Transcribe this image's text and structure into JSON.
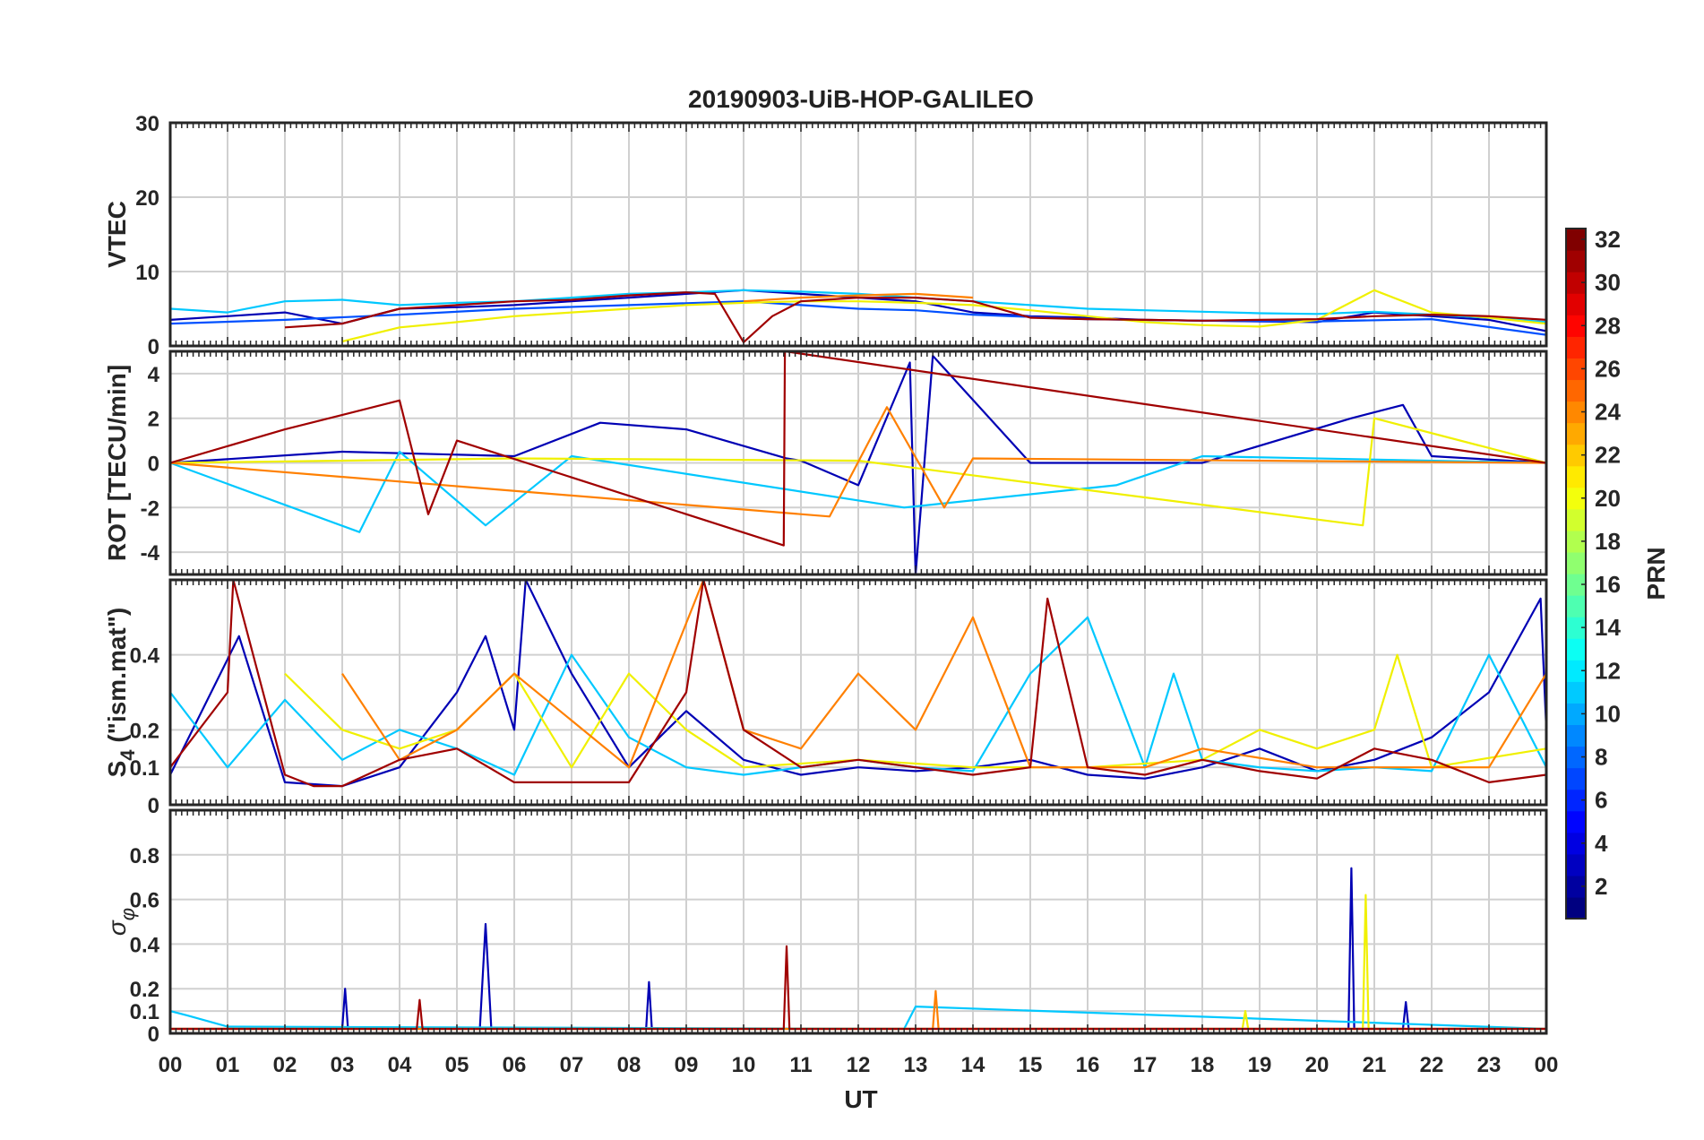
{
  "figure": {
    "title": "20190903-UiB-HOP-GALILEO"
  },
  "chart_data": {
    "type": "line",
    "title": "20190903-UiB-HOP-GALILEO",
    "xlabel": "UT",
    "x_range_hours": [
      0,
      24
    ],
    "x_tick_labels": [
      "00",
      "01",
      "02",
      "03",
      "04",
      "05",
      "06",
      "07",
      "08",
      "09",
      "10",
      "11",
      "12",
      "13",
      "14",
      "15",
      "16",
      "17",
      "18",
      "19",
      "20",
      "21",
      "22",
      "23",
      "00"
    ],
    "colorbar": {
      "label": "PRN",
      "range": [
        1,
        32
      ],
      "tick_labels": [
        "2",
        "4",
        "6",
        "8",
        "10",
        "12",
        "14",
        "16",
        "18",
        "20",
        "22",
        "24",
        "26",
        "28",
        "30",
        "32"
      ]
    },
    "panels": [
      {
        "id": "vtec",
        "ylabel": "VTEC",
        "ylim": [
          0,
          30
        ],
        "yticks": [
          "0",
          "10",
          "20",
          "30"
        ],
        "series": [
          {
            "name": "PRN 2",
            "prn": 2,
            "color": "#0000b4",
            "x": [
              0,
              1,
              2,
              3,
              4,
              5,
              6,
              7,
              8,
              9,
              10,
              11,
              12,
              13,
              14,
              15,
              16,
              17,
              18,
              19,
              20,
              21,
              22,
              23,
              24
            ],
            "values": [
              3.5,
              4,
              4.5,
              3,
              5,
              5.2,
              5.5,
              6,
              6.5,
              7,
              7.5,
              7,
              6.5,
              6,
              4.5,
              4,
              3.8,
              3.5,
              3.4,
              3.3,
              3.2,
              4.5,
              4,
              3.5,
              2
            ]
          },
          {
            "name": "PRN 5",
            "prn": 5,
            "color": "#0050ff",
            "x": [
              0,
              2,
              4,
              6,
              8,
              10,
              11,
              12,
              13,
              14,
              16,
              18,
              20,
              22,
              24
            ],
            "values": [
              3,
              3.5,
              4.2,
              5,
              5.5,
              6,
              5.5,
              5,
              4.8,
              4.2,
              3.6,
              3.4,
              3.3,
              3.6,
              1.5
            ]
          },
          {
            "name": "PRN 12",
            "prn": 12,
            "color": "#00c8ff",
            "x": [
              0,
              1,
              2,
              3,
              4,
              5,
              6,
              7,
              8,
              9,
              10,
              11,
              12,
              13,
              14,
              15,
              16,
              17,
              18,
              19,
              20,
              21,
              22,
              23,
              24
            ],
            "values": [
              5,
              4.5,
              6,
              6.2,
              5.5,
              5.8,
              6,
              6.5,
              7,
              7.2,
              7.5,
              7.3,
              7,
              6.5,
              6,
              5.5,
              5,
              4.8,
              4.6,
              4.4,
              4.3,
              4.6,
              4.2,
              3.8,
              3.2
            ]
          },
          {
            "name": "PRN 20",
            "prn": 20,
            "color": "#f0f000",
            "x": [
              3,
              4,
              5,
              6,
              7,
              8,
              9,
              10,
              11,
              12,
              13,
              14,
              15,
              16,
              17,
              18,
              19,
              20,
              21,
              22,
              23,
              24
            ],
            "values": [
              0.6,
              2.5,
              3.2,
              4,
              4.5,
              5,
              5.5,
              5.8,
              6,
              6,
              5.8,
              5.5,
              4.8,
              4,
              3.2,
              2.8,
              2.6,
              3.5,
              7.5,
              4.5,
              3.8,
              3
            ]
          },
          {
            "name": "PRN 25",
            "prn": 25,
            "color": "#ff8000",
            "x": [
              10,
              11,
              12,
              13,
              14
            ],
            "values": [
              6,
              6.5,
              6.8,
              7,
              6.5
            ]
          },
          {
            "name": "PRN 31",
            "prn": 31,
            "color": "#a00000",
            "x": [
              2,
              3,
              4,
              5,
              6,
              7,
              8,
              9,
              9.5,
              10,
              10.5,
              11,
              12,
              13,
              14,
              15,
              16,
              17,
              18,
              19,
              20,
              21,
              22,
              23,
              24
            ],
            "values": [
              2.5,
              3,
              5,
              5.5,
              6,
              6.2,
              6.8,
              7.2,
              7,
              0.5,
              4,
              6,
              6.5,
              6.5,
              6,
              3.8,
              3.6,
              3.5,
              3.4,
              3.5,
              3.6,
              4,
              4.2,
              4,
              3.5
            ]
          }
        ]
      },
      {
        "id": "rot",
        "ylabel": "ROT [TECU/min]",
        "ylim": [
          -5,
          5
        ],
        "yticks": [
          "-4",
          "-2",
          "0",
          "2",
          "4"
        ],
        "series": [
          {
            "name": "PRN 2",
            "prn": 2,
            "color": "#0000b4",
            "x": [
              0,
              3,
              6,
              7.5,
              9,
              10.75,
              11,
              12,
              12.9,
              13,
              13.3,
              15,
              18,
              20.6,
              21.5,
              22,
              24
            ],
            "values": [
              0,
              0.5,
              0.3,
              1.8,
              1.5,
              0.2,
              0.1,
              -1,
              4.5,
              -5,
              4.8,
              0,
              0,
              2,
              2.6,
              0.3,
              0
            ]
          },
          {
            "name": "PRN 12",
            "prn": 12,
            "color": "#00c8ff",
            "x": [
              0,
              3.3,
              4,
              5.5,
              7,
              12.8,
              16.5,
              18,
              24
            ],
            "values": [
              0,
              -3.1,
              0.5,
              -2.8,
              0.3,
              -2,
              -1,
              0.3,
              0
            ]
          },
          {
            "name": "PRN 20",
            "prn": 20,
            "color": "#f0f000",
            "x": [
              0,
              6,
              12,
              20.8,
              21,
              24
            ],
            "values": [
              0,
              0.2,
              0.1,
              -2.8,
              2,
              0
            ]
          },
          {
            "name": "PRN 25",
            "prn": 25,
            "color": "#ff8000",
            "x": [
              0,
              11.5,
              12.5,
              13.5,
              14,
              24
            ],
            "values": [
              0,
              -2.4,
              2.5,
              -2,
              0.2,
              0
            ]
          },
          {
            "name": "PRN 31",
            "prn": 31,
            "color": "#a00000",
            "x": [
              0,
              2,
              4,
              4.5,
              5,
              10.7,
              10.72,
              24
            ],
            "values": [
              0,
              1.5,
              2.8,
              -2.3,
              1,
              -3.7,
              5,
              0
            ]
          }
        ]
      },
      {
        "id": "s4",
        "ylabel": "S4 (\"ism.mat\")",
        "ylabel_main": "S",
        "ylabel_sub": "4",
        "ylabel_rest": " (\"ism.mat\")",
        "ylim": [
          0,
          0.6
        ],
        "yticks": [
          "0",
          "0.1",
          "0.2",
          "0.4"
        ],
        "series": [
          {
            "name": "PRN 2",
            "prn": 2,
            "color": "#0000b4",
            "x": [
              0,
              1.2,
              2,
              3,
              4,
              5,
              5.5,
              6,
              6.2,
              7,
              8,
              9,
              10,
              11,
              12,
              13,
              14,
              15,
              16,
              17,
              18,
              19,
              20,
              21,
              22,
              23,
              23.9,
              24
            ],
            "values": [
              0.08,
              0.45,
              0.06,
              0.05,
              0.1,
              0.3,
              0.45,
              0.2,
              0.6,
              0.35,
              0.1,
              0.25,
              0.12,
              0.08,
              0.1,
              0.09,
              0.1,
              0.12,
              0.08,
              0.07,
              0.1,
              0.15,
              0.09,
              0.12,
              0.18,
              0.3,
              0.55,
              0.2
            ]
          },
          {
            "name": "PRN 12",
            "prn": 12,
            "color": "#00c8ff",
            "x": [
              0,
              1,
              2,
              3,
              4,
              5,
              6,
              7,
              8,
              9,
              10,
              11,
              12,
              13,
              14,
              15,
              16,
              17,
              17.5,
              18,
              19,
              20,
              21,
              22,
              23,
              24
            ],
            "values": [
              0.3,
              0.1,
              0.28,
              0.12,
              0.2,
              0.15,
              0.08,
              0.4,
              0.18,
              0.1,
              0.08,
              0.1,
              0.12,
              0.1,
              0.09,
              0.35,
              0.5,
              0.1,
              0.35,
              0.12,
              0.1,
              0.09,
              0.1,
              0.09,
              0.4,
              0.1
            ]
          },
          {
            "name": "PRN 20",
            "prn": 20,
            "color": "#f0f000",
            "x": [
              2,
              3,
              4,
              5,
              6,
              7,
              8,
              9,
              10,
              12,
              14,
              16,
              18,
              19,
              20,
              21,
              21.4,
              22,
              24
            ],
            "values": [
              0.35,
              0.2,
              0.15,
              0.2,
              0.35,
              0.1,
              0.35,
              0.2,
              0.1,
              0.12,
              0.1,
              0.1,
              0.12,
              0.2,
              0.15,
              0.2,
              0.4,
              0.1,
              0.15
            ]
          },
          {
            "name": "PRN 25",
            "prn": 25,
            "color": "#ff8000",
            "x": [
              3,
              4,
              5,
              6,
              8,
              9.3,
              10,
              11,
              12,
              13,
              14,
              15,
              16,
              17,
              18,
              20,
              22,
              23,
              24
            ],
            "values": [
              0.35,
              0.12,
              0.2,
              0.35,
              0.1,
              0.6,
              0.2,
              0.15,
              0.35,
              0.2,
              0.5,
              0.1,
              0.1,
              0.1,
              0.15,
              0.1,
              0.1,
              0.1,
              0.35
            ]
          },
          {
            "name": "PRN 31",
            "prn": 31,
            "color": "#a00000",
            "x": [
              0,
              1,
              1.1,
              2,
              2.5,
              3,
              4,
              5,
              6,
              8,
              9,
              9.3,
              10,
              11,
              12,
              13,
              14,
              15,
              15.3,
              16,
              17,
              18,
              19,
              20,
              21,
              22,
              23,
              24
            ],
            "values": [
              0.1,
              0.3,
              0.6,
              0.08,
              0.05,
              0.05,
              0.12,
              0.15,
              0.06,
              0.06,
              0.3,
              0.6,
              0.2,
              0.1,
              0.12,
              0.1,
              0.08,
              0.1,
              0.55,
              0.1,
              0.08,
              0.12,
              0.09,
              0.07,
              0.15,
              0.12,
              0.06,
              0.08
            ]
          }
        ]
      },
      {
        "id": "sigma_phi",
        "ylabel": "σφ",
        "ylabel_main": "σ",
        "ylabel_sub": "φ",
        "ylim": [
          0,
          1
        ],
        "yticks": [
          "0",
          "0.1",
          "0.2",
          "0.4",
          "0.6",
          "0.8"
        ],
        "series": [
          {
            "name": "PRN 2",
            "prn": 2,
            "color": "#0000b4",
            "x": [
              0,
              3,
              3.05,
              3.1,
              5.4,
              5.5,
              5.6,
              8.3,
              8.35,
              8.4,
              20.55,
              20.6,
              20.65,
              21.5,
              21.55,
              21.6,
              24
            ],
            "values": [
              0.02,
              0.02,
              0.2,
              0.02,
              0.02,
              0.49,
              0.02,
              0.02,
              0.23,
              0.02,
              0.02,
              0.74,
              0.02,
              0.02,
              0.14,
              0.02,
              0.02
            ]
          },
          {
            "name": "PRN 12",
            "prn": 12,
            "color": "#00c8ff",
            "x": [
              0,
              0.3,
              1,
              12.8,
              13,
              24
            ],
            "values": [
              0.1,
              0.08,
              0.03,
              0.02,
              0.12,
              0.02
            ]
          },
          {
            "name": "PRN 20",
            "prn": 20,
            "color": "#f0f000",
            "x": [
              0,
              18.7,
              18.75,
              18.8,
              20.8,
              20.85,
              20.9,
              24
            ],
            "values": [
              0.02,
              0.02,
              0.1,
              0.02,
              0.02,
              0.62,
              0.02,
              0.02
            ]
          },
          {
            "name": "PRN 25",
            "prn": 25,
            "color": "#ff8000",
            "x": [
              0,
              13.3,
              13.35,
              13.4,
              24
            ],
            "values": [
              0.02,
              0.02,
              0.19,
              0.02,
              0.02
            ]
          },
          {
            "name": "PRN 31",
            "prn": 31,
            "color": "#a00000",
            "x": [
              0,
              4.3,
              4.35,
              4.4,
              10.7,
              10.75,
              10.8,
              24
            ],
            "values": [
              0.02,
              0.02,
              0.15,
              0.02,
              0.02,
              0.39,
              0.02,
              0.02
            ]
          }
        ]
      }
    ]
  }
}
